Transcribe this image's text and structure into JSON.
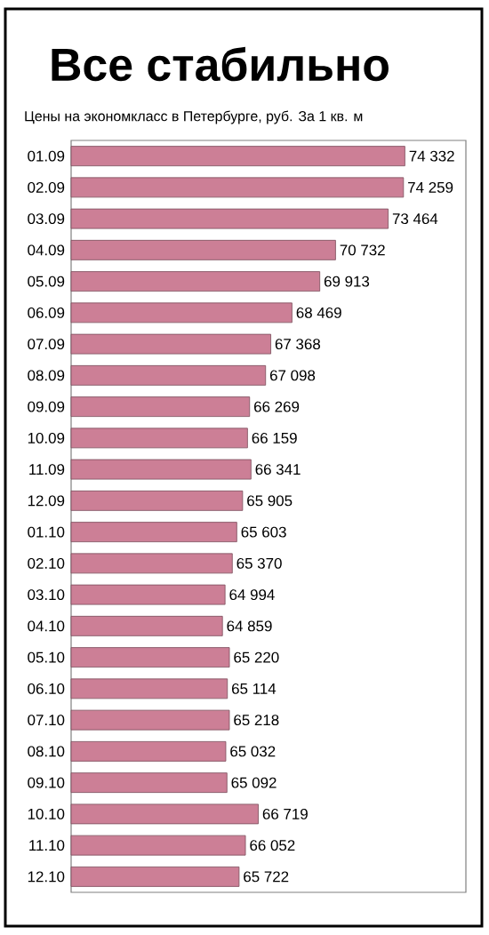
{
  "chart_data": {
    "type": "bar",
    "orientation": "horizontal",
    "title": "Все стабильно",
    "subtitle": "Цены на экономкласс в Петербурге, руб. За 1 кв. м",
    "categories": [
      "01.09",
      "02.09",
      "03.09",
      "04.09",
      "05.09",
      "06.09",
      "07.09",
      "08.09",
      "09.09",
      "10.09",
      "11.09",
      "12.09",
      "01.10",
      "02.10",
      "03.10",
      "04.10",
      "05.10",
      "06.10",
      "07.10",
      "08.10",
      "09.10",
      "10.10",
      "11.10",
      "12.10"
    ],
    "values": [
      74332,
      74259,
      73464,
      70732,
      69913,
      68469,
      67368,
      67098,
      66269,
      66159,
      66341,
      65905,
      65603,
      65370,
      64994,
      64859,
      65220,
      65114,
      65218,
      65032,
      65092,
      66719,
      66052,
      65722
    ],
    "value_labels": [
      "74 332",
      "74 259",
      "73 464",
      "70 732",
      "69 913",
      "68 469",
      "67 368",
      "67 098",
      "66 269",
      "66 159",
      "66 341",
      "65 905",
      "65 603",
      "65 370",
      "64 994",
      "64 859",
      "65 220",
      "65 114",
      "65 218",
      "65 032",
      "65 092",
      "66 719",
      "66 052",
      "65 722"
    ],
    "color": "#cc7f96",
    "xlim": [
      57000,
      77500
    ],
    "tick_labels": "y"
  }
}
